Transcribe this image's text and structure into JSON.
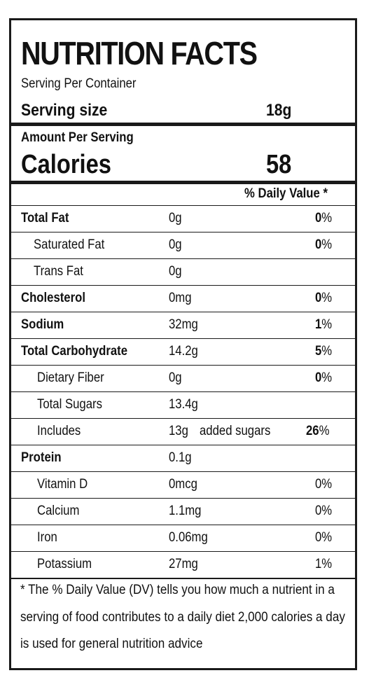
{
  "title": "NUTRITION FACTS",
  "serving_per_container_label": "Serving Per Container",
  "serving_size_label": "Serving size",
  "serving_size_value": "18g",
  "amount_per_serving": "Amount Per Serving",
  "calories_label": "Calories",
  "calories_value": "58",
  "daily_value_header": "% Daily Value *",
  "rows": [
    {
      "name": "Total Fat",
      "amount": "0g",
      "extra": "",
      "dv_num": "0",
      "dv_unit": "%"
    },
    {
      "name": "Saturated Fat",
      "amount": "0g",
      "extra": "",
      "dv_num": "0",
      "dv_unit": "%"
    },
    {
      "name": "Trans Fat",
      "amount": "0g",
      "extra": "",
      "dv_num": "",
      "dv_unit": ""
    },
    {
      "name": "Cholesterol",
      "amount": "0mg",
      "extra": "",
      "dv_num": "0",
      "dv_unit": "%"
    },
    {
      "name": "Sodium",
      "amount": "32mg",
      "extra": "",
      "dv_num": "1",
      "dv_unit": "%"
    },
    {
      "name": "Total Carbohydrate",
      "amount": "14.2g",
      "extra": "",
      "dv_num": "5",
      "dv_unit": "%"
    },
    {
      "name": "Dietary Fiber",
      "amount": "0g",
      "extra": "",
      "dv_num": "0",
      "dv_unit": "%"
    },
    {
      "name": "Total Sugars",
      "amount": "13.4g",
      "extra": "",
      "dv_num": "",
      "dv_unit": ""
    },
    {
      "name": "Includes",
      "amount": "13g",
      "extra": "added sugars",
      "dv_num": "26",
      "dv_unit": "%"
    },
    {
      "name": "Protein",
      "amount": "0.1g",
      "extra": "",
      "dv_num": "",
      "dv_unit": ""
    },
    {
      "name": "Vitamin D",
      "amount": "0mcg",
      "extra": "",
      "dv_num": "",
      "dv_unit": "0%"
    },
    {
      "name": "Calcium",
      "amount": "1.1mg",
      "extra": "",
      "dv_num": "",
      "dv_unit": "0%"
    },
    {
      "name": "Iron",
      "amount": "0.06mg",
      "extra": "",
      "dv_num": "",
      "dv_unit": "0%"
    },
    {
      "name": "Potassium",
      "amount": "27mg",
      "extra": "",
      "dv_num": "",
      "dv_unit": "1%"
    }
  ],
  "footnote": "* The % Daily Value (DV) tells you how much a nutrient in a serving of food contributes to a daily diet 2,000 calories a day is used for general nutrition advice"
}
